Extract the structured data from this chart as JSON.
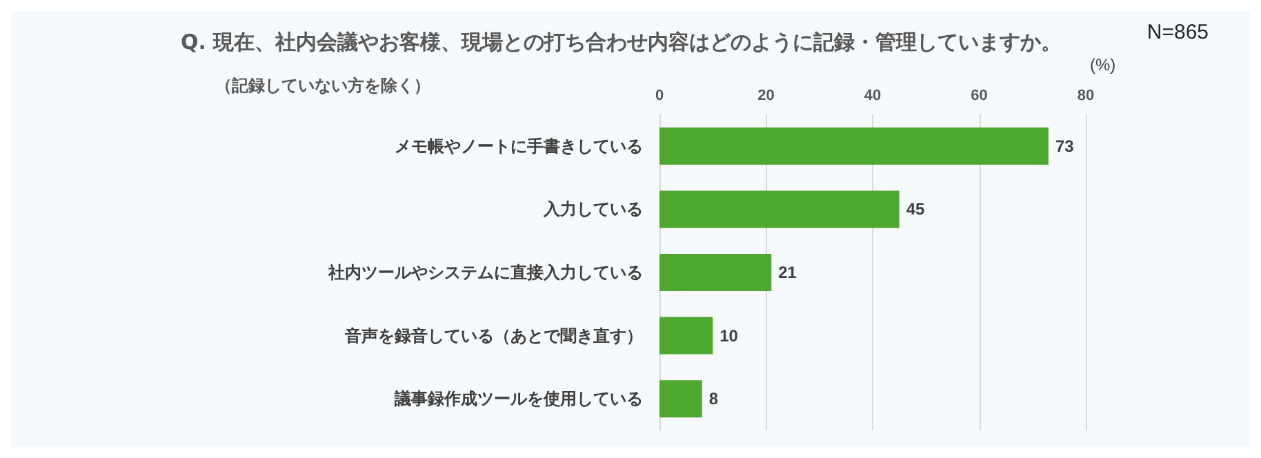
{
  "chart_data": {
    "type": "bar",
    "orientation": "horizontal",
    "title": "Q. 現在、社内会議やお客様、現場との打ち合わせ内容はどのように記録・管理していますか。",
    "subtitle": "（記録していない方を除く）",
    "xlabel": "(%)",
    "annotations": [
      "N=865"
    ],
    "categories": [
      "メモ帳やノートに手書きしている",
      "入力している",
      "社内ツールやシステムに直接入力している",
      "音声を録音している（あとで聞き直す）",
      "議事録作成ツールを使用している"
    ],
    "values": [
      73,
      45,
      21,
      10,
      8
    ],
    "color": "#4ea72e",
    "xlim": [
      0,
      80
    ],
    "xticks": [
      0,
      20,
      40,
      60,
      80
    ],
    "grid": "x",
    "data_labels": true
  }
}
